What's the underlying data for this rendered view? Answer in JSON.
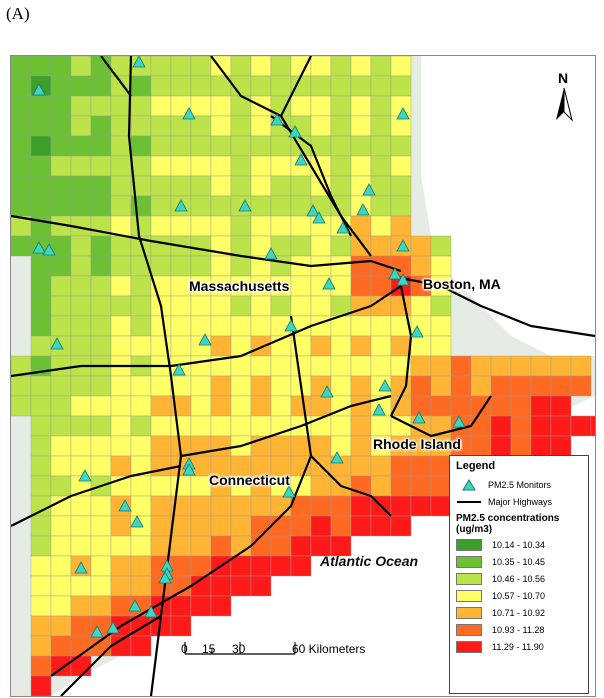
{
  "panel_label": "(A)",
  "places": {
    "massachusetts": "Massachusetts",
    "boston": "Boston, MA",
    "rhode_island": "Rhode Island",
    "connecticut": "Connecticut",
    "ocean": "Atlantic Ocean"
  },
  "north_label": "N",
  "legend": {
    "title": "Legend",
    "monitor_label": "PM2.5 Monitors",
    "highway_label": "Major Highways",
    "conc_title": "PM2.5 concentrations",
    "conc_unit": "(ug/m3)",
    "classes": [
      {
        "range": "10.14 - 10.34",
        "color": "#3b9f2a"
      },
      {
        "range": "10.35 - 10.45",
        "color": "#6cc034"
      },
      {
        "range": "10.46 - 10.56",
        "color": "#bde34a"
      },
      {
        "range": "10.57 - 10.70",
        "color": "#ffff66"
      },
      {
        "range": "10.71 - 10.92",
        "color": "#ffb533"
      },
      {
        "range": "10.93 - 11.28",
        "color": "#ff6a22"
      },
      {
        "range": "11.29 - 11.90",
        "color": "#ff1a1a"
      }
    ]
  },
  "scalebar": {
    "ticks": [
      "0",
      "15",
      "30",
      "60 Kilometers"
    ]
  },
  "colors": {
    "monitor": "#3fd6c0",
    "highway": "#000000",
    "land_outside": "#e4ece4"
  }
}
